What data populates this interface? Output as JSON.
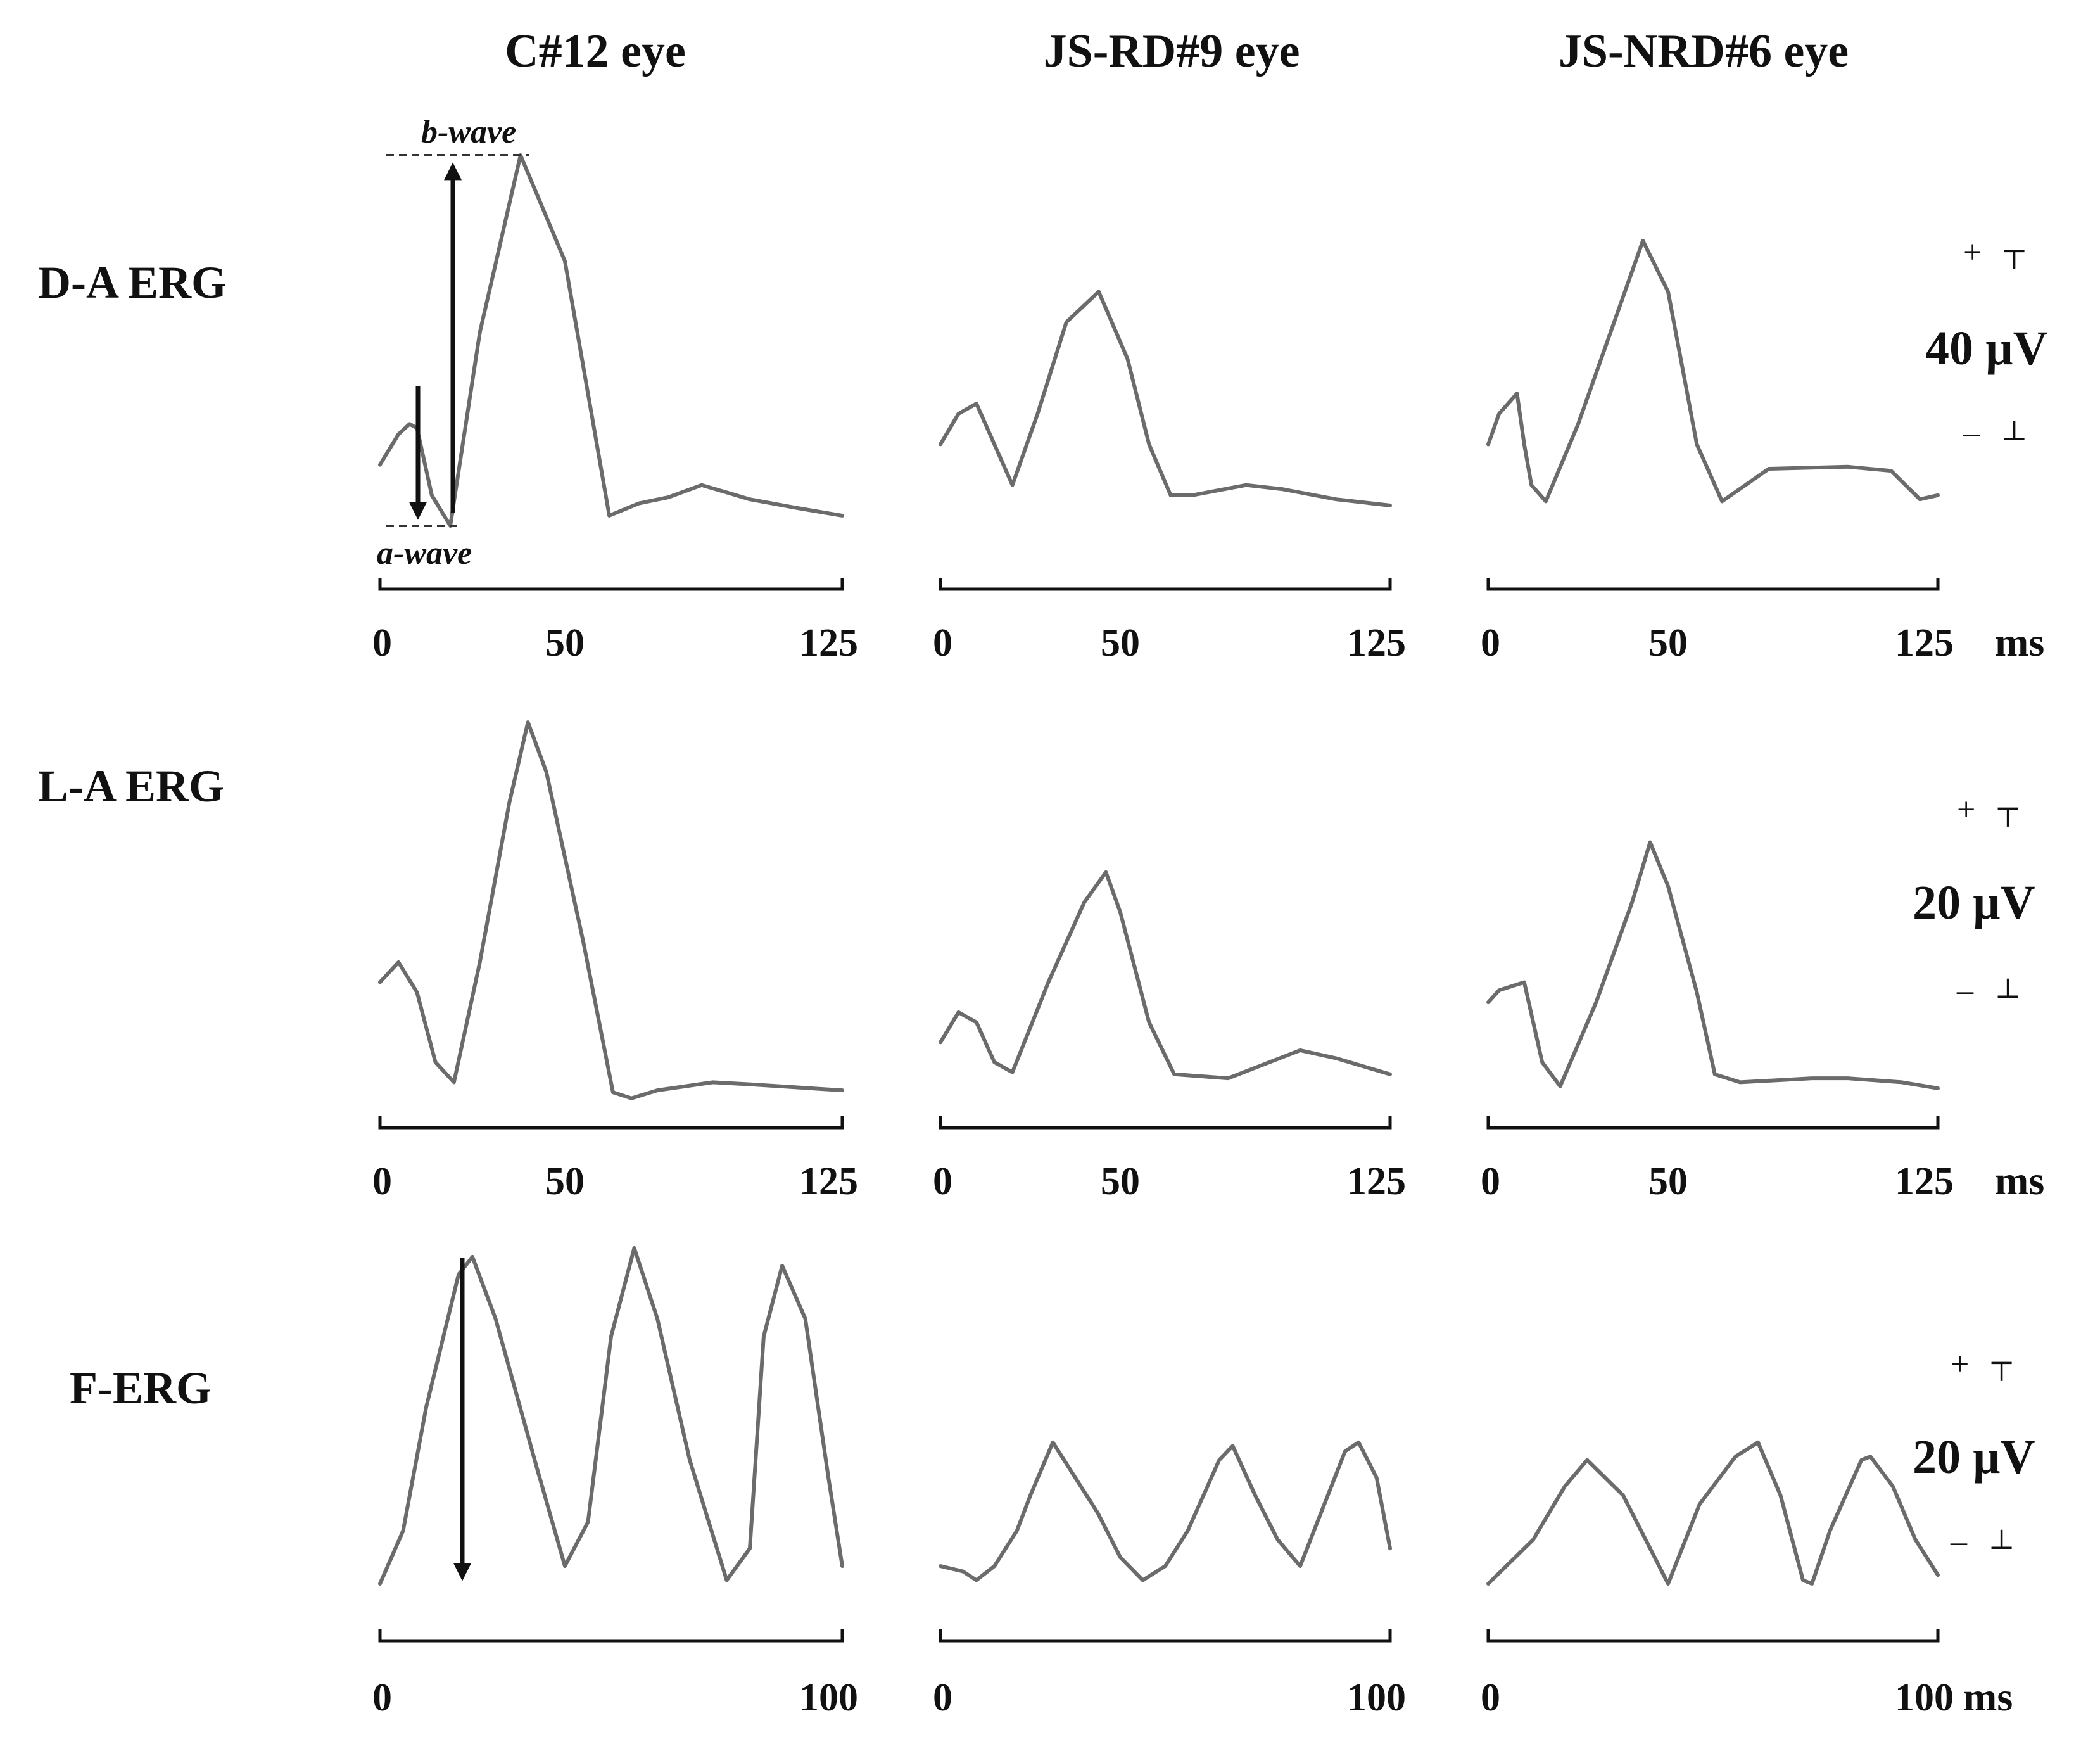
{
  "chart_data": {
    "type": "line",
    "column_titles": [
      "C#12 eye",
      "JS-RD#9 eye",
      "JS-NRD#6 eye"
    ],
    "row_labels": [
      "D-A ERG",
      "L-A ERG",
      "F-ERG"
    ],
    "annotations": {
      "b_wave": "b-wave",
      "a_wave": "a-wave"
    },
    "time_unit": "ms",
    "scale_plus": "+",
    "scale_minus": "–",
    "line_color": "#6b6b6b",
    "rows": [
      {
        "label": "D-A ERG",
        "scale_label": "40 µV",
        "x_ticks": [
          [
            "0",
            "50",
            "125"
          ],
          [
            "0",
            "50",
            "125"
          ],
          [
            "0",
            "50",
            "125"
          ]
        ],
        "panels": [
          {
            "xlim": [
              0,
              125
            ],
            "x": [
              0,
              5,
              8,
              10,
              14,
              19,
              27,
              38,
              50,
              62,
              70,
              78,
              87,
              100,
              112,
              125
            ],
            "y": [
              30,
              45,
              50,
              48,
              15,
              0,
              95,
              182,
              130,
              5,
              11,
              14,
              20,
              13,
              9,
              5
            ]
          },
          {
            "xlim": [
              0,
              125
            ],
            "x": [
              0,
              5,
              10,
              15,
              20,
              27,
              35,
              44,
              52,
              58,
              64,
              70,
              85,
              95,
              110,
              125
            ],
            "y": [
              40,
              55,
              60,
              40,
              20,
              55,
              100,
              115,
              82,
              40,
              15,
              15,
              20,
              18,
              13,
              10
            ]
          },
          {
            "xlim": [
              0,
              125
            ],
            "x": [
              0,
              3,
              8,
              10,
              12,
              16,
              25,
              35,
              43,
              50,
              58,
              65,
              78,
              100,
              112,
              120,
              125
            ],
            "y": [
              40,
              55,
              65,
              40,
              20,
              12,
              50,
              100,
              140,
              115,
              40,
              12,
              28,
              29,
              27,
              13,
              15
            ]
          }
        ]
      },
      {
        "label": "L-A ERG",
        "scale_label": "20 µV",
        "x_ticks": [
          [
            "0",
            "50",
            "125"
          ],
          [
            "0",
            "50",
            "125"
          ],
          [
            "0",
            "50",
            "125"
          ]
        ],
        "panels": [
          {
            "xlim": [
              0,
              125
            ],
            "x": [
              0,
              5,
              10,
              15,
              20,
              27,
              35,
              40,
              45,
              55,
              63,
              68,
              75,
              90,
              100,
              125
            ],
            "y": [
              60,
              70,
              55,
              20,
              10,
              70,
              150,
              190,
              165,
              80,
              5,
              2,
              6,
              10,
              9,
              6
            ]
          },
          {
            "xlim": [
              0,
              125
            ],
            "x": [
              0,
              5,
              10,
              15,
              20,
              30,
              40,
              46,
              50,
              58,
              65,
              80,
              100,
              110,
              125
            ],
            "y": [
              30,
              45,
              40,
              20,
              15,
              60,
              100,
              115,
              95,
              40,
              14,
              12,
              26,
              22,
              14
            ]
          },
          {
            "xlim": [
              0,
              125
            ],
            "x": [
              0,
              3,
              10,
              15,
              20,
              30,
              40,
              45,
              50,
              58,
              63,
              70,
              90,
              100,
              115,
              125
            ],
            "y": [
              50,
              56,
              60,
              20,
              8,
              50,
              100,
              130,
              108,
              55,
              14,
              10,
              12,
              12,
              10,
              7
            ]
          }
        ]
      },
      {
        "label": "F-ERG",
        "scale_label": "20 µV",
        "x_ticks": [
          [
            "0",
            "100"
          ],
          [
            "0",
            "100"
          ],
          [
            "0",
            "100"
          ]
        ],
        "panels": [
          {
            "xlim": [
              0,
              100
            ],
            "x": [
              0,
              5,
              10,
              17,
              20,
              25,
              34,
              40,
              45,
              50,
              55,
              60,
              67,
              75,
              80,
              83,
              87,
              92,
              97,
              100
            ],
            "y": [
              0,
              30,
              100,
              175,
              185,
              150,
              65,
              10,
              35,
              140,
              190,
              150,
              70,
              2,
              20,
              140,
              180,
              150,
              60,
              10
            ]
          },
          {
            "xlim": [
              0,
              100
            ],
            "x": [
              0,
              5,
              8,
              12,
              17,
              20,
              25,
              30,
              35,
              40,
              45,
              50,
              55,
              62,
              65,
              70,
              75,
              80,
              90,
              93,
              97,
              100
            ],
            "y": [
              10,
              7,
              2,
              10,
              30,
              50,
              80,
              60,
              40,
              15,
              2,
              10,
              30,
              70,
              78,
              50,
              25,
              10,
              75,
              80,
              60,
              20
            ]
          },
          {
            "xlim": [
              0,
              100
            ],
            "x": [
              0,
              10,
              17,
              22,
              30,
              40,
              47,
              55,
              60,
              65,
              70,
              72,
              76,
              83,
              85,
              90,
              95,
              100
            ],
            "y": [
              0,
              25,
              55,
              70,
              50,
              0,
              45,
              72,
              80,
              50,
              2,
              0,
              30,
              70,
              72,
              55,
              25,
              5
            ]
          }
        ]
      }
    ]
  }
}
